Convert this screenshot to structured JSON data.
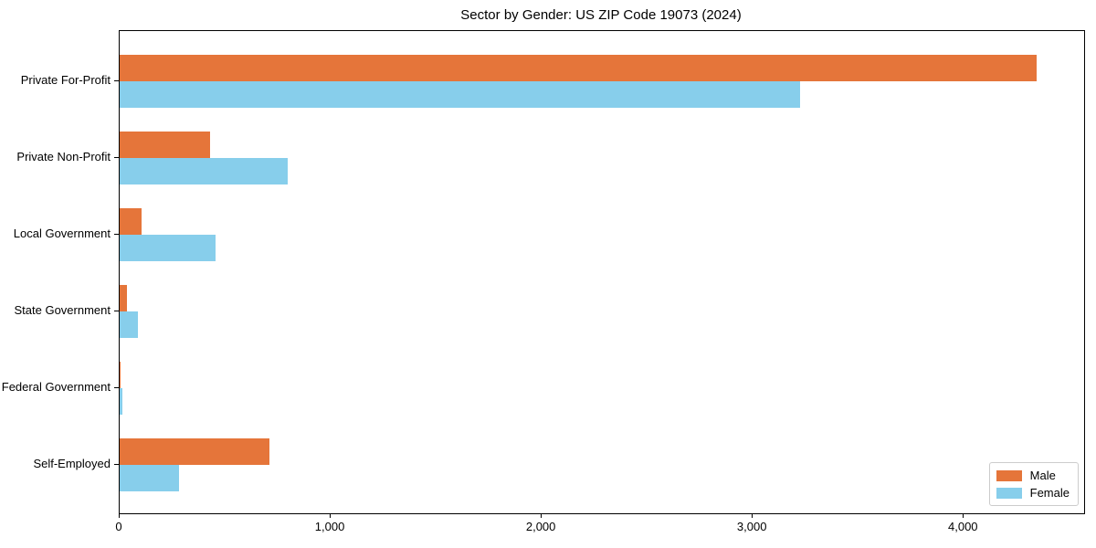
{
  "chart_data": {
    "type": "bar",
    "orientation": "horizontal",
    "title": "Sector by Gender: US ZIP Code 19073 (2024)",
    "categories": [
      "Private For-Profit",
      "Private Non-Profit",
      "Local Government",
      "State Government",
      "Federal Government",
      "Self-Employed"
    ],
    "series": [
      {
        "name": "Male",
        "color": "#e5753a",
        "values": [
          4345,
          430,
          105,
          35,
          5,
          710
        ]
      },
      {
        "name": "Female",
        "color": "#87ceeb",
        "values": [
          3225,
          795,
          455,
          85,
          15,
          280
        ]
      }
    ],
    "xlabel": "",
    "ylabel": "",
    "xlim": [
      0,
      4570
    ],
    "x_ticks": {
      "values": [
        0,
        1000,
        2000,
        3000,
        4000
      ],
      "labels": [
        "0",
        "1,000",
        "2,000",
        "3,000",
        "4,000"
      ]
    },
    "grid": false,
    "legend": {
      "position": "lower right"
    },
    "colors": {
      "male": "#e5753a",
      "female": "#87ceeb",
      "spine": "#000000",
      "legend_border": "#cccccc"
    }
  }
}
